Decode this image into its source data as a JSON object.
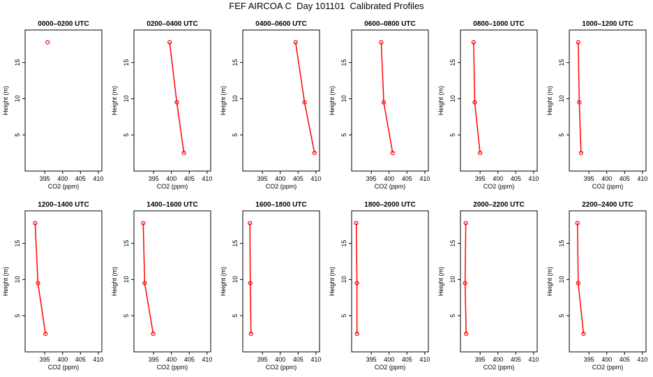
{
  "page": {
    "title": "FEF AIRCOA C  Day 101101  Calibrated Profiles"
  },
  "colors": {
    "series": "#ff0000",
    "axis": "#000000",
    "background": "#ffffff"
  },
  "chart_data": [
    {
      "type": "line",
      "title": "0000–0200 UTC",
      "xlabel": "CO2 (ppm)",
      "ylabel": "Height (m)",
      "xlim": [
        389.5,
        411
      ],
      "ylim": [
        0,
        19.5
      ],
      "xticks": [
        395,
        400,
        405,
        410
      ],
      "yticks": [
        5,
        10,
        15
      ],
      "grid": false,
      "series": [
        {
          "x": [
            395.8
          ],
          "y": [
            17.8
          ]
        }
      ]
    },
    {
      "type": "line",
      "title": "0200–0400 UTC",
      "xlabel": "CO2 (ppm)",
      "ylabel": "Height (m)",
      "xlim": [
        389.5,
        411
      ],
      "ylim": [
        0,
        19.5
      ],
      "xticks": [
        395,
        400,
        405,
        410
      ],
      "yticks": [
        5,
        10,
        15
      ],
      "grid": false,
      "series": [
        {
          "x": [
            399.5,
            401.5,
            403.5
          ],
          "y": [
            17.8,
            9.5,
            2.5
          ]
        }
      ]
    },
    {
      "type": "line",
      "title": "0400–0600 UTC",
      "xlabel": "CO2 (ppm)",
      "ylabel": "Height (m)",
      "xlim": [
        389.5,
        411
      ],
      "ylim": [
        0,
        19.5
      ],
      "xticks": [
        395,
        400,
        405,
        410
      ],
      "yticks": [
        5,
        10,
        15
      ],
      "grid": false,
      "series": [
        {
          "x": [
            404.3,
            406.8,
            409.6
          ],
          "y": [
            17.8,
            9.5,
            2.5
          ]
        }
      ]
    },
    {
      "type": "line",
      "title": "0600–0800 UTC",
      "xlabel": "CO2 (ppm)",
      "ylabel": "Height (m)",
      "xlim": [
        389.5,
        411
      ],
      "ylim": [
        0,
        19.5
      ],
      "xticks": [
        395,
        400,
        405,
        410
      ],
      "yticks": [
        5,
        10,
        15
      ],
      "grid": false,
      "series": [
        {
          "x": [
            397.8,
            398.5,
            401.0
          ],
          "y": [
            17.8,
            9.5,
            2.5
          ]
        }
      ]
    },
    {
      "type": "line",
      "title": "0800–1000 UTC",
      "xlabel": "CO2 (ppm)",
      "ylabel": "Height (m)",
      "xlim": [
        389.5,
        411
      ],
      "ylim": [
        0,
        19.5
      ],
      "xticks": [
        395,
        400,
        405,
        410
      ],
      "yticks": [
        5,
        10,
        15
      ],
      "grid": false,
      "series": [
        {
          "x": [
            393.2,
            393.5,
            395.0
          ],
          "y": [
            17.8,
            9.5,
            2.5
          ]
        }
      ]
    },
    {
      "type": "line",
      "title": "1000–1200 UTC",
      "xlabel": "CO2 (ppm)",
      "ylabel": "Height (m)",
      "xlim": [
        389.5,
        411
      ],
      "ylim": [
        0,
        19.5
      ],
      "xticks": [
        395,
        400,
        405,
        410
      ],
      "yticks": [
        5,
        10,
        15
      ],
      "grid": false,
      "series": [
        {
          "x": [
            392.0,
            392.3,
            392.8
          ],
          "y": [
            17.8,
            9.5,
            2.5
          ]
        }
      ]
    },
    {
      "type": "line",
      "title": "1200–1400 UTC",
      "xlabel": "CO2 (ppm)",
      "ylabel": "Height (m)",
      "xlim": [
        389.5,
        411
      ],
      "ylim": [
        0,
        19.5
      ],
      "xticks": [
        395,
        400,
        405,
        410
      ],
      "yticks": [
        5,
        10,
        15
      ],
      "grid": false,
      "series": [
        {
          "x": [
            392.3,
            393.1,
            395.2
          ],
          "y": [
            17.8,
            9.5,
            2.5
          ]
        }
      ]
    },
    {
      "type": "line",
      "title": "1400–1600 UTC",
      "xlabel": "CO2 (ppm)",
      "ylabel": "Height (m)",
      "xlim": [
        389.5,
        411
      ],
      "ylim": [
        0,
        19.5
      ],
      "xticks": [
        395,
        400,
        405,
        410
      ],
      "yticks": [
        5,
        10,
        15
      ],
      "grid": false,
      "series": [
        {
          "x": [
            392.1,
            392.5,
            394.9
          ],
          "y": [
            17.8,
            9.5,
            2.5
          ]
        }
      ]
    },
    {
      "type": "line",
      "title": "1600–1800 UTC",
      "xlabel": "CO2 (ppm)",
      "ylabel": "Height (m)",
      "xlim": [
        389.5,
        411
      ],
      "ylim": [
        0,
        19.5
      ],
      "xticks": [
        395,
        400,
        405,
        410
      ],
      "yticks": [
        5,
        10,
        15
      ],
      "grid": false,
      "series": [
        {
          "x": [
            391.5,
            391.6,
            391.8
          ],
          "y": [
            17.8,
            9.5,
            2.5
          ]
        }
      ]
    },
    {
      "type": "line",
      "title": "1800–2000 UTC",
      "xlabel": "CO2 (ppm)",
      "ylabel": "Height (m)",
      "xlim": [
        389.5,
        411
      ],
      "ylim": [
        0,
        19.5
      ],
      "xticks": [
        395,
        400,
        405,
        410
      ],
      "yticks": [
        5,
        10,
        15
      ],
      "grid": false,
      "series": [
        {
          "x": [
            390.8,
            391.0,
            391.0
          ],
          "y": [
            17.8,
            9.5,
            2.5
          ]
        }
      ]
    },
    {
      "type": "line",
      "title": "2000–2200 UTC",
      "xlabel": "CO2 (ppm)",
      "ylabel": "Height (m)",
      "xlim": [
        389.5,
        411
      ],
      "ylim": [
        0,
        19.5
      ],
      "xticks": [
        395,
        400,
        405,
        410
      ],
      "yticks": [
        5,
        10,
        15
      ],
      "grid": false,
      "series": [
        {
          "x": [
            391.0,
            390.8,
            391.1
          ],
          "y": [
            17.8,
            9.5,
            2.5
          ]
        }
      ]
    },
    {
      "type": "line",
      "title": "2200–2400 UTC",
      "xlabel": "CO2 (ppm)",
      "ylabel": "Height (m)",
      "xlim": [
        389.5,
        411
      ],
      "ylim": [
        0,
        19.5
      ],
      "xticks": [
        395,
        400,
        405,
        410
      ],
      "yticks": [
        5,
        10,
        15
      ],
      "grid": false,
      "series": [
        {
          "x": [
            391.8,
            392.0,
            393.5
          ],
          "y": [
            17.8,
            9.5,
            2.5
          ]
        }
      ]
    }
  ]
}
